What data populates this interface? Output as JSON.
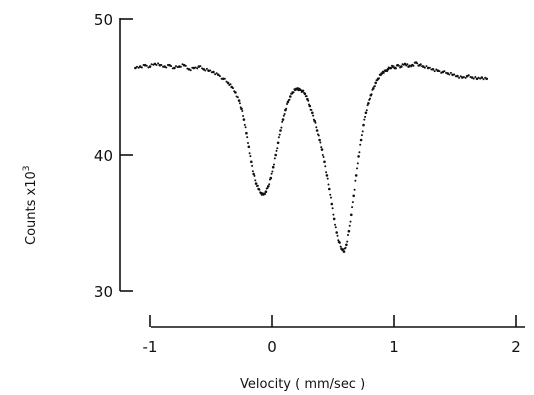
{
  "chart_data": {
    "type": "scatter",
    "xlabel": "Velocity  ( mm/sec )",
    "ylabel": "Counts  x10",
    "ylabel_exponent": "3",
    "xlim": [
      -1,
      2
    ],
    "ylim": [
      30,
      50
    ],
    "x_ticks": [
      -1,
      0,
      1,
      2
    ],
    "x_tick_labels": [
      "-1",
      "0",
      "1",
      "2"
    ],
    "y_ticks": [
      30,
      40,
      50
    ],
    "y_tick_labels": [
      "30",
      "40",
      "50"
    ],
    "grid": false,
    "legend": "none",
    "marker_color": "#111111",
    "series": [
      {
        "x": [
          -1.12,
          -1.08,
          -1.04,
          -1.0,
          -0.96,
          -0.92,
          -0.88,
          -0.84,
          -0.8,
          -0.76,
          -0.72,
          -0.68,
          -0.64,
          -0.6,
          -0.56,
          -0.52,
          -0.48,
          -0.44,
          -0.4,
          -0.36,
          -0.33,
          -0.3,
          -0.27,
          -0.25,
          -0.23,
          -0.21,
          -0.19,
          -0.17,
          -0.15,
          -0.13,
          -0.11,
          -0.09,
          -0.07,
          -0.05,
          -0.03,
          -0.01,
          0.01,
          0.03,
          0.05,
          0.07,
          0.09,
          0.11,
          0.13,
          0.15,
          0.17,
          0.19,
          0.21,
          0.23,
          0.25,
          0.27,
          0.29,
          0.31,
          0.33,
          0.35,
          0.37,
          0.39,
          0.41,
          0.43,
          0.45,
          0.47,
          0.49,
          0.51,
          0.53,
          0.55,
          0.57,
          0.59,
          0.61,
          0.63,
          0.65,
          0.67,
          0.69,
          0.71,
          0.73,
          0.75,
          0.77,
          0.79,
          0.81,
          0.83,
          0.85,
          0.87,
          0.89,
          0.91,
          0.93,
          0.95,
          0.97,
          0.99,
          1.01,
          1.03,
          1.06,
          1.09,
          1.12,
          1.15,
          1.18,
          1.21,
          1.24,
          1.28,
          1.32,
          1.36,
          1.4,
          1.44,
          1.48,
          1.52,
          1.56,
          1.6,
          1.64,
          1.68,
          1.72,
          1.76
        ],
        "y": [
          46.4,
          46.5,
          46.6,
          46.5,
          46.7,
          46.6,
          46.5,
          46.6,
          46.4,
          46.5,
          46.6,
          46.3,
          46.4,
          46.5,
          46.3,
          46.2,
          46.1,
          45.9,
          45.6,
          45.3,
          45.0,
          44.6,
          44.0,
          43.4,
          42.6,
          41.6,
          40.6,
          39.5,
          38.6,
          37.9,
          37.5,
          37.2,
          37.1,
          37.3,
          37.7,
          38.3,
          39.1,
          40.0,
          40.9,
          41.8,
          42.6,
          43.3,
          43.9,
          44.3,
          44.6,
          44.8,
          44.9,
          44.8,
          44.7,
          44.5,
          44.1,
          43.6,
          43.1,
          42.5,
          41.8,
          41.1,
          40.4,
          39.5,
          38.5,
          37.5,
          36.4,
          35.3,
          34.3,
          33.6,
          33.1,
          32.9,
          33.4,
          34.4,
          35.6,
          37.0,
          38.5,
          39.9,
          41.1,
          42.2,
          43.1,
          43.8,
          44.4,
          44.9,
          45.3,
          45.6,
          45.9,
          46.1,
          46.2,
          46.3,
          46.4,
          46.5,
          46.4,
          46.6,
          46.5,
          46.7,
          46.5,
          46.6,
          46.8,
          46.6,
          46.5,
          46.4,
          46.3,
          46.2,
          46.1,
          46.0,
          45.9,
          45.8,
          45.7,
          45.8,
          45.7,
          45.6,
          45.7,
          45.6
        ]
      }
    ]
  }
}
